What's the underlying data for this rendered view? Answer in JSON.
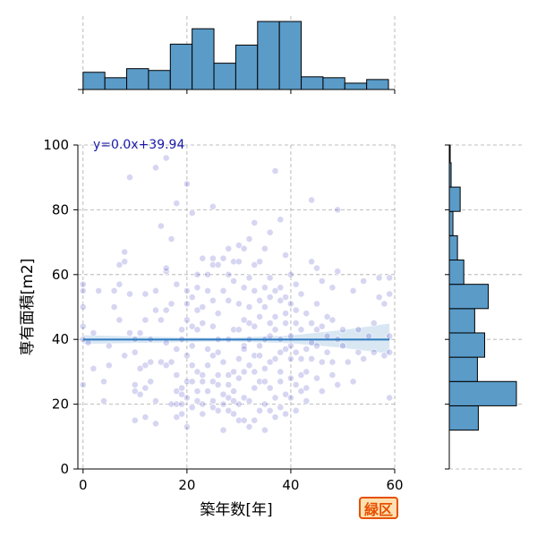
{
  "badge": {
    "label": "緑区",
    "border_color": "#e65100",
    "bg_color": "#ffe0b2"
  },
  "chart_data": {
    "type": "scatter",
    "title": "",
    "xlabel": "築年数[年]",
    "ylabel": "専有面積[m2]",
    "xlim": [
      -1,
      60
    ],
    "ylim": [
      0,
      100
    ],
    "xticks": [
      0,
      20,
      40,
      60
    ],
    "yticks": [
      0,
      20,
      40,
      60,
      80,
      100
    ],
    "grid": true,
    "point_color": "#3030c0",
    "hist_color": "#5a9bc8",
    "regression": {
      "equation": "y=0.0x+39.94",
      "slope": 0.0,
      "intercept": 39.94,
      "line_color": "#2e7bbf",
      "ci_color": "#b9d3ea",
      "ci_lower": [
        [
          0,
          38.6
        ],
        [
          10,
          38.9
        ],
        [
          20,
          39.2
        ],
        [
          28,
          39.4
        ],
        [
          40,
          38.8
        ],
        [
          50,
          37.4
        ],
        [
          59,
          35.6
        ]
      ],
      "ci_upper": [
        [
          0,
          41.3
        ],
        [
          10,
          40.9
        ],
        [
          20,
          40.6
        ],
        [
          28,
          40.5
        ],
        [
          40,
          41.2
        ],
        [
          50,
          42.9
        ],
        [
          59,
          44.9
        ]
      ]
    },
    "x_histogram": {
      "bin_edges": [
        0,
        4.2,
        8.4,
        12.6,
        16.8,
        21,
        25.2,
        29.4,
        33.6,
        37.8,
        42,
        46.2,
        50.4,
        54.6,
        58.8
      ],
      "heights": [
        19,
        13,
        23,
        21,
        50,
        67,
        29,
        49,
        75,
        75,
        14,
        13,
        7,
        11
      ]
    },
    "y_histogram": {
      "bin_edges": [
        12,
        19.5,
        27,
        34.5,
        42,
        49.5,
        57,
        64.5,
        72,
        79.5,
        87,
        94.5,
        100
      ],
      "widths": [
        32,
        74,
        31,
        39,
        28,
        43,
        16,
        9,
        4,
        12,
        2,
        1
      ]
    },
    "points": [
      [
        0,
        26
      ],
      [
        0,
        44
      ],
      [
        0,
        50
      ],
      [
        0,
        57
      ],
      [
        0,
        55
      ],
      [
        0,
        40
      ],
      [
        1,
        39
      ],
      [
        2,
        31
      ],
      [
        2,
        42
      ],
      [
        3,
        55
      ],
      [
        4,
        21
      ],
      [
        4,
        27
      ],
      [
        5,
        38
      ],
      [
        5,
        32
      ],
      [
        6,
        55
      ],
      [
        6,
        50
      ],
      [
        7,
        46
      ],
      [
        7,
        57
      ],
      [
        7,
        63
      ],
      [
        8,
        35
      ],
      [
        8,
        64
      ],
      [
        8,
        67
      ],
      [
        9,
        54
      ],
      [
        9,
        42
      ],
      [
        9,
        90
      ],
      [
        10,
        15
      ],
      [
        10,
        24
      ],
      [
        10,
        26
      ],
      [
        10,
        40
      ],
      [
        10,
        36
      ],
      [
        11,
        31
      ],
      [
        11,
        23
      ],
      [
        11,
        42
      ],
      [
        12,
        16
      ],
      [
        12,
        32
      ],
      [
        12,
        46
      ],
      [
        12,
        54
      ],
      [
        12,
        25
      ],
      [
        13,
        27
      ],
      [
        13,
        33
      ],
      [
        13,
        40
      ],
      [
        14,
        14
      ],
      [
        14,
        21
      ],
      [
        14,
        55
      ],
      [
        14,
        93
      ],
      [
        14,
        49
      ],
      [
        15,
        33
      ],
      [
        15,
        46
      ],
      [
        15,
        75
      ],
      [
        16,
        32
      ],
      [
        16,
        49
      ],
      [
        16,
        61
      ],
      [
        16,
        62
      ],
      [
        16,
        96
      ],
      [
        16,
        39
      ],
      [
        17,
        20
      ],
      [
        17,
        33
      ],
      [
        17,
        51
      ],
      [
        17,
        71
      ],
      [
        18,
        16
      ],
      [
        18,
        24
      ],
      [
        18,
        37
      ],
      [
        18,
        20
      ],
      [
        18,
        29
      ],
      [
        18,
        57
      ],
      [
        18,
        82
      ],
      [
        19,
        20
      ],
      [
        19,
        23
      ],
      [
        19,
        43
      ],
      [
        19,
        40
      ],
      [
        19,
        25
      ],
      [
        19,
        17
      ],
      [
        20,
        51
      ],
      [
        20,
        55
      ],
      [
        20,
        46
      ],
      [
        20,
        27
      ],
      [
        20,
        22
      ],
      [
        20,
        35
      ],
      [
        20,
        88
      ],
      [
        20,
        13
      ],
      [
        21,
        27
      ],
      [
        21,
        32
      ],
      [
        21,
        38
      ],
      [
        21,
        53
      ],
      [
        21,
        79
      ],
      [
        21,
        19
      ],
      [
        21,
        44
      ],
      [
        22,
        21
      ],
      [
        22,
        30
      ],
      [
        22,
        49
      ],
      [
        22,
        56
      ],
      [
        22,
        60
      ],
      [
        22,
        24
      ],
      [
        22,
        43
      ],
      [
        23,
        17
      ],
      [
        23,
        27
      ],
      [
        23,
        29
      ],
      [
        23,
        45
      ],
      [
        23,
        65
      ],
      [
        23,
        50
      ],
      [
        23,
        20
      ],
      [
        24,
        24
      ],
      [
        24,
        32
      ],
      [
        24,
        55
      ],
      [
        24,
        60
      ],
      [
        24,
        37
      ],
      [
        25,
        21
      ],
      [
        25,
        27
      ],
      [
        25,
        52
      ],
      [
        25,
        65
      ],
      [
        25,
        81
      ],
      [
        25,
        63
      ],
      [
        25,
        35
      ],
      [
        25,
        44
      ],
      [
        25,
        19
      ],
      [
        26,
        18
      ],
      [
        26,
        26
      ],
      [
        26,
        36
      ],
      [
        26,
        40
      ],
      [
        26,
        48
      ],
      [
        26,
        63
      ],
      [
        26,
        29
      ],
      [
        27,
        12
      ],
      [
        27,
        20
      ],
      [
        27,
        33
      ],
      [
        27,
        55
      ],
      [
        27,
        65
      ],
      [
        27,
        23
      ],
      [
        28,
        18
      ],
      [
        28,
        22
      ],
      [
        28,
        26
      ],
      [
        28,
        40
      ],
      [
        28,
        52
      ],
      [
        28,
        60
      ],
      [
        28,
        68
      ],
      [
        28,
        29
      ],
      [
        29,
        17
      ],
      [
        29,
        24
      ],
      [
        29,
        30
      ],
      [
        29,
        43
      ],
      [
        29,
        58
      ],
      [
        29,
        64
      ],
      [
        29,
        21
      ],
      [
        30,
        15
      ],
      [
        30,
        20
      ],
      [
        30,
        28
      ],
      [
        30,
        34
      ],
      [
        30,
        51
      ],
      [
        30,
        64
      ],
      [
        30,
        69
      ],
      [
        30,
        43
      ],
      [
        31,
        15
      ],
      [
        31,
        22
      ],
      [
        31,
        30
      ],
      [
        31,
        38
      ],
      [
        31,
        46
      ],
      [
        31,
        56
      ],
      [
        31,
        68
      ],
      [
        31,
        37
      ],
      [
        32,
        13
      ],
      [
        32,
        21
      ],
      [
        32,
        32
      ],
      [
        32,
        40
      ],
      [
        32,
        50
      ],
      [
        32,
        59
      ],
      [
        32,
        71
      ],
      [
        32,
        45
      ],
      [
        33,
        15
      ],
      [
        33,
        25
      ],
      [
        33,
        35
      ],
      [
        33,
        44
      ],
      [
        33,
        55
      ],
      [
        33,
        63
      ],
      [
        33,
        76
      ],
      [
        33,
        30
      ],
      [
        34,
        18
      ],
      [
        34,
        27
      ],
      [
        34,
        35
      ],
      [
        34,
        47
      ],
      [
        34,
        52
      ],
      [
        34,
        64
      ],
      [
        34,
        38
      ],
      [
        35,
        12
      ],
      [
        35,
        20
      ],
      [
        35,
        31
      ],
      [
        35,
        40
      ],
      [
        35,
        50
      ],
      [
        35,
        56
      ],
      [
        35,
        68
      ],
      [
        35,
        27
      ],
      [
        36,
        18
      ],
      [
        36,
        25
      ],
      [
        36,
        33
      ],
      [
        36,
        45
      ],
      [
        36,
        53
      ],
      [
        36,
        59
      ],
      [
        36,
        73
      ],
      [
        36,
        41
      ],
      [
        37,
        16
      ],
      [
        37,
        22
      ],
      [
        37,
        34
      ],
      [
        37,
        43
      ],
      [
        37,
        55
      ],
      [
        37,
        92
      ],
      [
        37,
        47
      ],
      [
        38,
        19
      ],
      [
        38,
        27
      ],
      [
        38,
        36
      ],
      [
        38,
        40
      ],
      [
        38,
        52
      ],
      [
        38,
        56
      ],
      [
        38,
        77
      ],
      [
        38,
        30
      ],
      [
        39,
        17
      ],
      [
        39,
        23
      ],
      [
        39,
        37
      ],
      [
        39,
        45
      ],
      [
        39,
        53
      ],
      [
        39,
        66
      ],
      [
        39,
        48
      ],
      [
        40,
        22
      ],
      [
        40,
        28
      ],
      [
        40,
        34
      ],
      [
        40,
        41
      ],
      [
        40,
        51
      ],
      [
        40,
        60
      ],
      [
        40,
        38
      ],
      [
        41,
        18
      ],
      [
        41,
        26
      ],
      [
        41,
        36
      ],
      [
        41,
        49
      ],
      [
        41,
        57
      ],
      [
        41,
        45
      ],
      [
        42,
        24
      ],
      [
        42,
        34
      ],
      [
        42,
        43
      ],
      [
        42,
        54
      ],
      [
        42,
        29
      ],
      [
        43,
        21
      ],
      [
        43,
        30
      ],
      [
        43,
        37
      ],
      [
        43,
        48
      ],
      [
        43,
        25
      ],
      [
        44,
        39
      ],
      [
        44,
        45
      ],
      [
        44,
        64
      ],
      [
        44,
        83
      ],
      [
        44,
        34
      ],
      [
        45,
        28
      ],
      [
        45,
        38
      ],
      [
        45,
        51
      ],
      [
        45,
        62
      ],
      [
        45,
        43
      ],
      [
        46,
        33
      ],
      [
        46,
        44
      ],
      [
        46,
        58
      ],
      [
        46,
        24
      ],
      [
        47,
        36
      ],
      [
        47,
        47
      ],
      [
        47,
        41
      ],
      [
        48,
        33
      ],
      [
        48,
        46
      ],
      [
        48,
        56
      ],
      [
        48,
        29
      ],
      [
        49,
        40
      ],
      [
        49,
        61
      ],
      [
        49,
        80
      ],
      [
        49,
        26
      ],
      [
        50,
        38
      ],
      [
        50,
        43
      ],
      [
        51,
        33
      ],
      [
        52,
        27
      ],
      [
        52,
        55
      ],
      [
        53,
        36
      ],
      [
        53,
        43
      ],
      [
        54,
        58
      ],
      [
        54,
        34
      ],
      [
        55,
        41
      ],
      [
        56,
        45
      ],
      [
        56,
        36
      ],
      [
        57,
        53
      ],
      [
        57,
        59
      ],
      [
        58,
        35
      ],
      [
        58,
        51
      ],
      [
        59,
        22
      ],
      [
        59,
        41
      ],
      [
        59,
        36
      ],
      [
        59,
        54
      ],
      [
        59,
        59
      ]
    ]
  }
}
